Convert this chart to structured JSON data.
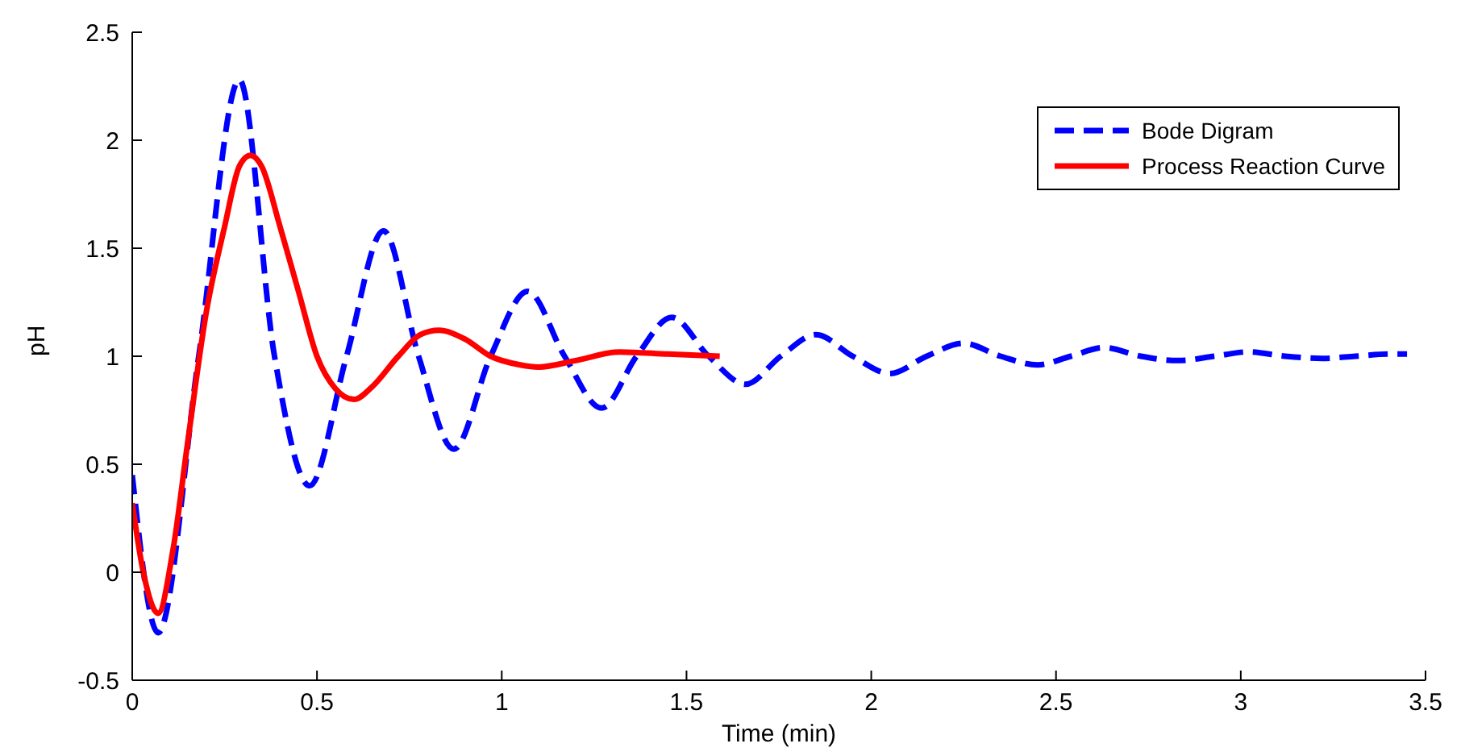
{
  "chart_data": {
    "type": "line",
    "xlabel": "Time (min)",
    "ylabel": "pH",
    "xlim": [
      0,
      3.5
    ],
    "ylim": [
      -0.5,
      2.5
    ],
    "xticks": [
      0,
      0.5,
      1,
      1.5,
      2,
      2.5,
      3,
      3.5
    ],
    "yticks": [
      -0.5,
      0,
      0.5,
      1,
      1.5,
      2,
      2.5
    ],
    "legend": "top right",
    "marker": "none",
    "series": [
      {
        "name": "Bode Digram",
        "color": "#0000ff",
        "line_style": "dashed",
        "x": [
          0,
          0.07,
          0.18,
          0.29,
          0.385,
          0.48,
          0.58,
          0.68,
          0.775,
          0.87,
          0.97,
          1.07,
          1.17,
          1.27,
          1.365,
          1.46,
          1.56,
          1.66,
          1.755,
          1.85,
          1.95,
          2.05,
          2.15,
          2.25,
          2.35,
          2.45,
          2.54,
          2.63,
          2.73,
          2.83,
          2.93,
          3.02,
          3.12,
          3.22,
          3.31,
          3.4,
          3.45
        ],
        "values": [
          0.45,
          -0.28,
          1.0,
          2.28,
          1.0,
          0.4,
          1.0,
          1.58,
          1.0,
          0.57,
          1.0,
          1.3,
          1.0,
          0.76,
          1.0,
          1.18,
          1.0,
          0.87,
          1.0,
          1.1,
          1.0,
          0.92,
          1.0,
          1.06,
          1.0,
          0.96,
          1.0,
          1.04,
          1.0,
          0.98,
          1.0,
          1.02,
          1.0,
          0.99,
          1.0,
          1.01,
          1.01
        ]
      },
      {
        "name": "Process Reaction Curve",
        "color": "#ff0000",
        "line_style": "solid",
        "x": [
          0,
          0.03,
          0.07,
          0.11,
          0.15,
          0.2,
          0.25,
          0.29,
          0.32,
          0.35,
          0.4,
          0.45,
          0.5,
          0.55,
          0.6,
          0.65,
          0.72,
          0.78,
          0.83,
          0.9,
          0.97,
          1.05,
          1.1,
          1.2,
          1.32,
          1.45,
          1.59
        ],
        "values": [
          0.32,
          0.0,
          -0.19,
          0.1,
          0.6,
          1.2,
          1.6,
          1.88,
          1.93,
          1.88,
          1.6,
          1.3,
          1.0,
          0.85,
          0.8,
          0.86,
          1.0,
          1.1,
          1.12,
          1.08,
          1.0,
          0.96,
          0.95,
          0.98,
          1.02,
          1.01,
          1.0
        ]
      }
    ]
  }
}
